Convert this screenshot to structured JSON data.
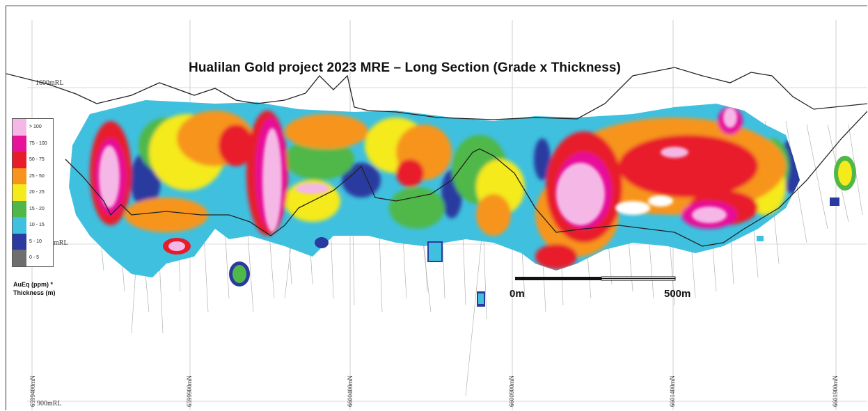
{
  "title": "Hualilan Gold project 2023 MRE – Long Section (Grade x Thickness)",
  "elevation_labels": {
    "top": "1600mRL",
    "middle": "mRL",
    "bottom": "900mRL"
  },
  "northing_labels": [
    "6599400mN",
    "6599900mN",
    "6600400mN",
    "6600900mN",
    "6601400mN",
    "6601900mN"
  ],
  "legend": {
    "title_line1": "AuEq (ppm) *",
    "title_line2": "Thickness (m)",
    "items": [
      {
        "label": "> 100",
        "color": "#f5b8e6"
      },
      {
        "label": "75 - 100",
        "color": "#e8119a"
      },
      {
        "label": "50 - 75",
        "color": "#e81b2a"
      },
      {
        "label": "25 - 50",
        "color": "#f7941d"
      },
      {
        "label": "20 - 25",
        "color": "#f4ea1c"
      },
      {
        "label": "15 - 20",
        "color": "#50b848"
      },
      {
        "label": "10 - 15",
        "color": "#3fc0df"
      },
      {
        "label": "5 - 10",
        "color": "#2b3aa0"
      },
      {
        "label": "0 - 5",
        "color": "#6e6e70"
      }
    ]
  },
  "scale_bar": {
    "start_label": "0m",
    "end_label": "500m"
  }
}
